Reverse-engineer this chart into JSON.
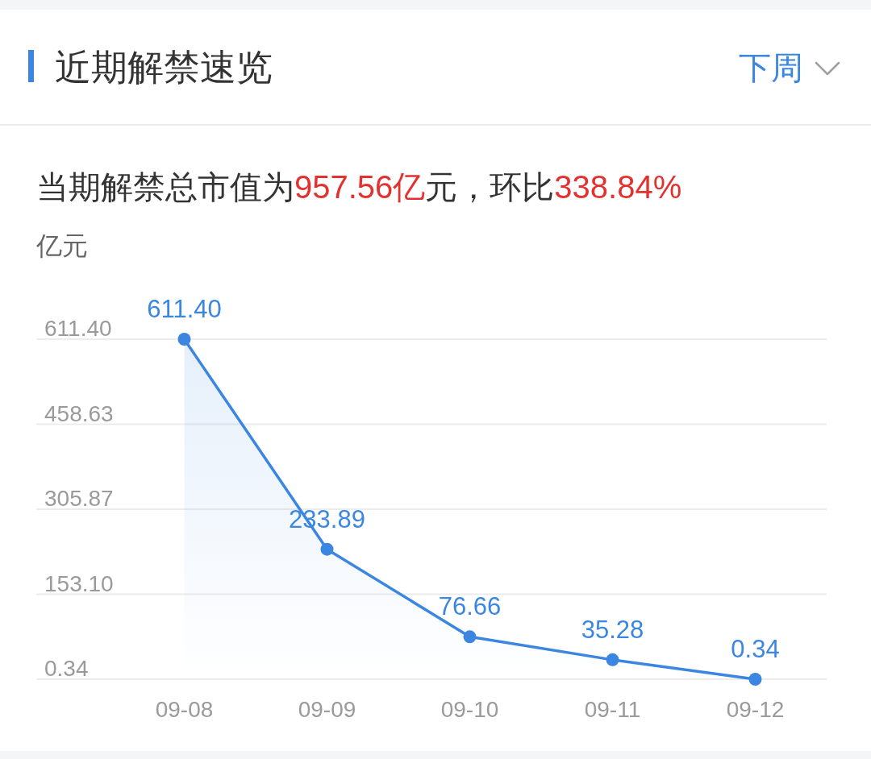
{
  "chart_data": {
    "type": "area",
    "title": "近期解禁速览",
    "subtitle": "当期解禁总市值为957.56亿元，环比338.84%",
    "ylabel": "亿元",
    "annotations": [
      "下周"
    ],
    "categories": [
      "09-08",
      "09-09",
      "09-10",
      "09-11",
      "09-12"
    ],
    "values": [
      611.4,
      233.89,
      76.66,
      35.28,
      0.34
    ],
    "color": "#3a86e0",
    "value_labels": [
      "611.40",
      "233.89",
      "76.66",
      "35.28",
      "0.34"
    ],
    "ylim": [
      0.34,
      611.4
    ],
    "yticks": [
      0.34,
      {
        "value": 153.1,
        "label": "153.10"
      },
      305.87,
      458.63,
      {
        "value": 611.4,
        "label": "611.40"
      }
    ],
    "grid": "y",
    "marker": "circle",
    "line_style": "solid"
  }
}
